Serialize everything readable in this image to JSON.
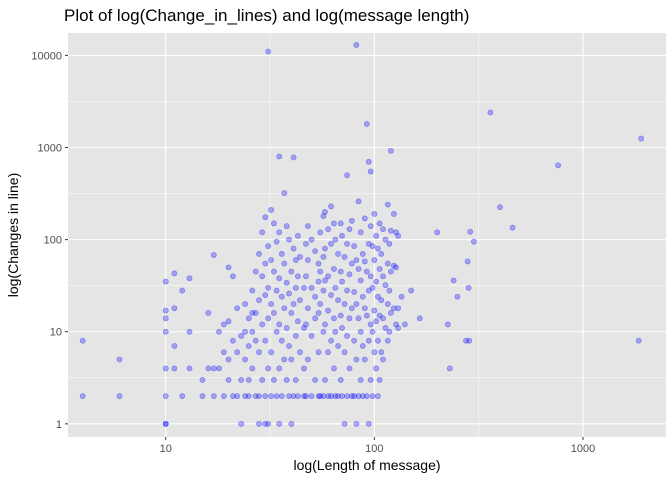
{
  "chart_data": {
    "type": "scatter",
    "title": "Plot of log(Change_in_lines) and log(message length)",
    "xlabel": "log(Length of message)",
    "ylabel": "log(Changes in line)",
    "x_scale": "log10",
    "y_scale": "log10",
    "xlim": [
      3.4,
      2500
    ],
    "ylim": [
      0.72,
      17500
    ],
    "x_ticks": [
      10,
      100,
      1000
    ],
    "x_tick_labels": [
      "10",
      "100",
      "1000"
    ],
    "y_ticks": [
      1,
      10,
      100,
      1000,
      10000
    ],
    "y_tick_labels": [
      "1",
      "10",
      "100",
      "1000",
      "10000"
    ],
    "grid": true,
    "point_color": "#0000ff",
    "point_alpha": 0.3,
    "panel_background": "#e5e5e5",
    "grid_color": "#ffffff",
    "points": [
      {
        "x": 4,
        "y": 8
      },
      {
        "x": 4,
        "y": 2
      },
      {
        "x": 6,
        "y": 5
      },
      {
        "x": 6,
        "y": 2
      },
      {
        "x": 10,
        "y": 35
      },
      {
        "x": 10,
        "y": 17
      },
      {
        "x": 10,
        "y": 14
      },
      {
        "x": 10,
        "y": 10
      },
      {
        "x": 10,
        "y": 4
      },
      {
        "x": 10,
        "y": 2
      },
      {
        "x": 10,
        "y": 1
      },
      {
        "x": 10,
        "y": 1
      },
      {
        "x": 11,
        "y": 43
      },
      {
        "x": 11,
        "y": 18
      },
      {
        "x": 11,
        "y": 7
      },
      {
        "x": 11,
        "y": 4
      },
      {
        "x": 12,
        "y": 28
      },
      {
        "x": 12,
        "y": 2
      },
      {
        "x": 13,
        "y": 38
      },
      {
        "x": 13,
        "y": 10
      },
      {
        "x": 13,
        "y": 4
      },
      {
        "x": 15,
        "y": 3
      },
      {
        "x": 15,
        "y": 2
      },
      {
        "x": 16,
        "y": 16
      },
      {
        "x": 16,
        "y": 4
      },
      {
        "x": 17,
        "y": 68
      },
      {
        "x": 17,
        "y": 4
      },
      {
        "x": 17,
        "y": 2
      },
      {
        "x": 18,
        "y": 10
      },
      {
        "x": 18,
        "y": 4
      },
      {
        "x": 19,
        "y": 12
      },
      {
        "x": 19,
        "y": 6
      },
      {
        "x": 19,
        "y": 2
      },
      {
        "x": 20,
        "y": 50
      },
      {
        "x": 20,
        "y": 13
      },
      {
        "x": 20,
        "y": 5
      },
      {
        "x": 20,
        "y": 3
      },
      {
        "x": 21,
        "y": 40
      },
      {
        "x": 21,
        "y": 8
      },
      {
        "x": 21,
        "y": 2
      },
      {
        "x": 22,
        "y": 18
      },
      {
        "x": 22,
        "y": 6
      },
      {
        "x": 22,
        "y": 2
      },
      {
        "x": 23,
        "y": 9
      },
      {
        "x": 23,
        "y": 3
      },
      {
        "x": 23,
        "y": 1
      },
      {
        "x": 24,
        "y": 20
      },
      {
        "x": 24,
        "y": 10
      },
      {
        "x": 24,
        "y": 5
      },
      {
        "x": 24,
        "y": 2
      },
      {
        "x": 25,
        "y": 14
      },
      {
        "x": 25,
        "y": 7
      },
      {
        "x": 25,
        "y": 3
      },
      {
        "x": 25,
        "y": 2
      },
      {
        "x": 26,
        "y": 28
      },
      {
        "x": 26,
        "y": 16
      },
      {
        "x": 26,
        "y": 10
      },
      {
        "x": 26,
        "y": 4
      },
      {
        "x": 27,
        "y": 45
      },
      {
        "x": 27,
        "y": 16
      },
      {
        "x": 27,
        "y": 8
      },
      {
        "x": 27,
        "y": 2
      },
      {
        "x": 28,
        "y": 70
      },
      {
        "x": 28,
        "y": 22
      },
      {
        "x": 28,
        "y": 6
      },
      {
        "x": 28,
        "y": 2
      },
      {
        "x": 28,
        "y": 1
      },
      {
        "x": 29,
        "y": 120
      },
      {
        "x": 29,
        "y": 40
      },
      {
        "x": 29,
        "y": 12
      },
      {
        "x": 29,
        "y": 3
      },
      {
        "x": 30,
        "y": 175
      },
      {
        "x": 30,
        "y": 55
      },
      {
        "x": 30,
        "y": 25
      },
      {
        "x": 30,
        "y": 8
      },
      {
        "x": 30,
        "y": 2
      },
      {
        "x": 30,
        "y": 1
      },
      {
        "x": 31,
        "y": 11000
      },
      {
        "x": 31,
        "y": 85
      },
      {
        "x": 31,
        "y": 30
      },
      {
        "x": 31,
        "y": 14
      },
      {
        "x": 31,
        "y": 4
      },
      {
        "x": 31,
        "y": 1
      },
      {
        "x": 32,
        "y": 210
      },
      {
        "x": 32,
        "y": 60
      },
      {
        "x": 32,
        "y": 20
      },
      {
        "x": 32,
        "y": 6
      },
      {
        "x": 32,
        "y": 2
      },
      {
        "x": 33,
        "y": 150
      },
      {
        "x": 33,
        "y": 45
      },
      {
        "x": 33,
        "y": 16
      },
      {
        "x": 33,
        "y": 3
      },
      {
        "x": 34,
        "y": 95
      },
      {
        "x": 34,
        "y": 28
      },
      {
        "x": 34,
        "y": 10
      },
      {
        "x": 34,
        "y": 2
      },
      {
        "x": 35,
        "y": 800
      },
      {
        "x": 35,
        "y": 120
      },
      {
        "x": 35,
        "y": 38
      },
      {
        "x": 35,
        "y": 12
      },
      {
        "x": 35,
        "y": 4
      },
      {
        "x": 35,
        "y": 1
      },
      {
        "x": 36,
        "y": 70
      },
      {
        "x": 36,
        "y": 24
      },
      {
        "x": 36,
        "y": 8
      },
      {
        "x": 36,
        "y": 2
      },
      {
        "x": 37,
        "y": 320
      },
      {
        "x": 37,
        "y": 55
      },
      {
        "x": 37,
        "y": 18
      },
      {
        "x": 37,
        "y": 5
      },
      {
        "x": 38,
        "y": 140
      },
      {
        "x": 38,
        "y": 34
      },
      {
        "x": 38,
        "y": 11
      },
      {
        "x": 38,
        "y": 3
      },
      {
        "x": 39,
        "y": 100
      },
      {
        "x": 39,
        "y": 26
      },
      {
        "x": 39,
        "y": 7
      },
      {
        "x": 39,
        "y": 2
      },
      {
        "x": 40,
        "y": 45
      },
      {
        "x": 40,
        "y": 16
      },
      {
        "x": 40,
        "y": 5
      },
      {
        "x": 40,
        "y": 1
      },
      {
        "x": 41,
        "y": 780
      },
      {
        "x": 41,
        "y": 80
      },
      {
        "x": 41,
        "y": 20
      },
      {
        "x": 41,
        "y": 2
      },
      {
        "x": 42,
        "y": 60
      },
      {
        "x": 42,
        "y": 30
      },
      {
        "x": 42,
        "y": 9
      },
      {
        "x": 42,
        "y": 3
      },
      {
        "x": 43,
        "y": 110
      },
      {
        "x": 43,
        "y": 40
      },
      {
        "x": 43,
        "y": 13
      },
      {
        "x": 43,
        "y": 2
      },
      {
        "x": 44,
        "y": 65
      },
      {
        "x": 44,
        "y": 22
      },
      {
        "x": 44,
        "y": 6
      },
      {
        "x": 46,
        "y": 30
      },
      {
        "x": 46,
        "y": 11
      },
      {
        "x": 46,
        "y": 4
      },
      {
        "x": 46,
        "y": 2
      },
      {
        "x": 47,
        "y": 90
      },
      {
        "x": 47,
        "y": 40
      },
      {
        "x": 47,
        "y": 12
      },
      {
        "x": 47,
        "y": 2
      },
      {
        "x": 48,
        "y": 140
      },
      {
        "x": 48,
        "y": 60
      },
      {
        "x": 48,
        "y": 18
      },
      {
        "x": 48,
        "y": 5
      },
      {
        "x": 50,
        "y": 100
      },
      {
        "x": 50,
        "y": 30
      },
      {
        "x": 50,
        "y": 9
      },
      {
        "x": 50,
        "y": 2
      },
      {
        "x": 52,
        "y": 75
      },
      {
        "x": 52,
        "y": 24
      },
      {
        "x": 52,
        "y": 14
      },
      {
        "x": 52,
        "y": 3
      },
      {
        "x": 54,
        "y": 55
      },
      {
        "x": 54,
        "y": 35
      },
      {
        "x": 54,
        "y": 16
      },
      {
        "x": 54,
        "y": 6
      },
      {
        "x": 54,
        "y": 2
      },
      {
        "x": 55,
        "y": 120
      },
      {
        "x": 55,
        "y": 45
      },
      {
        "x": 55,
        "y": 20
      },
      {
        "x": 55,
        "y": 2
      },
      {
        "x": 57,
        "y": 180
      },
      {
        "x": 57,
        "y": 65
      },
      {
        "x": 57,
        "y": 28
      },
      {
        "x": 57,
        "y": 10
      },
      {
        "x": 57,
        "y": 2
      },
      {
        "x": 58,
        "y": 200
      },
      {
        "x": 58,
        "y": 80
      },
      {
        "x": 58,
        "y": 36
      },
      {
        "x": 58,
        "y": 12
      },
      {
        "x": 58,
        "y": 3
      },
      {
        "x": 60,
        "y": 130
      },
      {
        "x": 60,
        "y": 40
      },
      {
        "x": 60,
        "y": 17
      },
      {
        "x": 60,
        "y": 6
      },
      {
        "x": 60,
        "y": 2
      },
      {
        "x": 62,
        "y": 230
      },
      {
        "x": 62,
        "y": 90
      },
      {
        "x": 62,
        "y": 25
      },
      {
        "x": 62,
        "y": 8
      },
      {
        "x": 62,
        "y": 2
      },
      {
        "x": 64,
        "y": 150
      },
      {
        "x": 64,
        "y": 48
      },
      {
        "x": 64,
        "y": 14
      },
      {
        "x": 64,
        "y": 4
      },
      {
        "x": 65,
        "y": 100
      },
      {
        "x": 65,
        "y": 30
      },
      {
        "x": 65,
        "y": 10
      },
      {
        "x": 65,
        "y": 2
      },
      {
        "x": 67,
        "y": 70
      },
      {
        "x": 67,
        "y": 22
      },
      {
        "x": 67,
        "y": 7
      },
      {
        "x": 67,
        "y": 2
      },
      {
        "x": 69,
        "y": 150
      },
      {
        "x": 69,
        "y": 45
      },
      {
        "x": 69,
        "y": 15
      },
      {
        "x": 69,
        "y": 3
      },
      {
        "x": 70,
        "y": 110
      },
      {
        "x": 70,
        "y": 35
      },
      {
        "x": 70,
        "y": 11
      },
      {
        "x": 70,
        "y": 2
      },
      {
        "x": 72,
        "y": 65
      },
      {
        "x": 72,
        "y": 20
      },
      {
        "x": 72,
        "y": 6
      },
      {
        "x": 72,
        "y": 1
      },
      {
        "x": 74,
        "y": 500
      },
      {
        "x": 74,
        "y": 90
      },
      {
        "x": 74,
        "y": 28
      },
      {
        "x": 74,
        "y": 9
      },
      {
        "x": 74,
        "y": 2
      },
      {
        "x": 76,
        "y": 130
      },
      {
        "x": 76,
        "y": 42
      },
      {
        "x": 76,
        "y": 14
      },
      {
        "x": 76,
        "y": 4
      },
      {
        "x": 78,
        "y": 160
      },
      {
        "x": 78,
        "y": 55
      },
      {
        "x": 78,
        "y": 18
      },
      {
        "x": 78,
        "y": 2
      },
      {
        "x": 80,
        "y": 85
      },
      {
        "x": 80,
        "y": 27
      },
      {
        "x": 80,
        "y": 8
      },
      {
        "x": 80,
        "y": 2
      },
      {
        "x": 82,
        "y": 13000
      },
      {
        "x": 82,
        "y": 60
      },
      {
        "x": 82,
        "y": 20
      },
      {
        "x": 82,
        "y": 5
      },
      {
        "x": 82,
        "y": 1
      },
      {
        "x": 84,
        "y": 260
      },
      {
        "x": 84,
        "y": 48
      },
      {
        "x": 84,
        "y": 14
      },
      {
        "x": 84,
        "y": 2
      },
      {
        "x": 86,
        "y": 120
      },
      {
        "x": 86,
        "y": 36
      },
      {
        "x": 86,
        "y": 10
      },
      {
        "x": 86,
        "y": 3
      },
      {
        "x": 88,
        "y": 70
      },
      {
        "x": 88,
        "y": 24
      },
      {
        "x": 88,
        "y": 7
      },
      {
        "x": 88,
        "y": 2
      },
      {
        "x": 90,
        "y": 170
      },
      {
        "x": 90,
        "y": 58
      },
      {
        "x": 90,
        "y": 18
      },
      {
        "x": 90,
        "y": 5
      },
      {
        "x": 92,
        "y": 1800
      },
      {
        "x": 92,
        "y": 45
      },
      {
        "x": 92,
        "y": 15
      },
      {
        "x": 92,
        "y": 2
      },
      {
        "x": 94,
        "y": 700
      },
      {
        "x": 94,
        "y": 90
      },
      {
        "x": 94,
        "y": 28
      },
      {
        "x": 94,
        "y": 8
      },
      {
        "x": 94,
        "y": 1
      },
      {
        "x": 96,
        "y": 550
      },
      {
        "x": 96,
        "y": 140
      },
      {
        "x": 96,
        "y": 40
      },
      {
        "x": 96,
        "y": 12
      },
      {
        "x": 96,
        "y": 3
      },
      {
        "x": 98,
        "y": 85
      },
      {
        "x": 98,
        "y": 30
      },
      {
        "x": 98,
        "y": 10
      },
      {
        "x": 98,
        "y": 2
      },
      {
        "x": 100,
        "y": 190
      },
      {
        "x": 100,
        "y": 60
      },
      {
        "x": 100,
        "y": 17
      },
      {
        "x": 100,
        "y": 6
      },
      {
        "x": 102,
        "y": 110
      },
      {
        "x": 102,
        "y": 35
      },
      {
        "x": 102,
        "y": 13
      },
      {
        "x": 102,
        "y": 4
      },
      {
        "x": 104,
        "y": 80
      },
      {
        "x": 104,
        "y": 24
      },
      {
        "x": 104,
        "y": 8
      },
      {
        "x": 104,
        "y": 2
      },
      {
        "x": 106,
        "y": 150
      },
      {
        "x": 106,
        "y": 48
      },
      {
        "x": 106,
        "y": 15
      },
      {
        "x": 106,
        "y": 3
      },
      {
        "x": 108,
        "y": 70
      },
      {
        "x": 108,
        "y": 22
      },
      {
        "x": 108,
        "y": 6
      },
      {
        "x": 110,
        "y": 130
      },
      {
        "x": 110,
        "y": 40
      },
      {
        "x": 110,
        "y": 14
      },
      {
        "x": 110,
        "y": 5
      },
      {
        "x": 113,
        "y": 100
      },
      {
        "x": 113,
        "y": 32
      },
      {
        "x": 113,
        "y": 11
      },
      {
        "x": 116,
        "y": 240
      },
      {
        "x": 116,
        "y": 55
      },
      {
        "x": 116,
        "y": 20
      },
      {
        "x": 116,
        "y": 8
      },
      {
        "x": 118,
        "y": 90
      },
      {
        "x": 118,
        "y": 28
      },
      {
        "x": 118,
        "y": 10
      },
      {
        "x": 120,
        "y": 920
      },
      {
        "x": 120,
        "y": 125
      },
      {
        "x": 120,
        "y": 45
      },
      {
        "x": 120,
        "y": 16
      },
      {
        "x": 124,
        "y": 190
      },
      {
        "x": 124,
        "y": 52
      },
      {
        "x": 124,
        "y": 18
      },
      {
        "x": 127,
        "y": 120
      },
      {
        "x": 127,
        "y": 50
      },
      {
        "x": 127,
        "y": 12
      },
      {
        "x": 130,
        "y": 110
      },
      {
        "x": 130,
        "y": 18
      },
      {
        "x": 130,
        "y": 11
      },
      {
        "x": 135,
        "y": 24
      },
      {
        "x": 140,
        "y": 12
      },
      {
        "x": 150,
        "y": 28
      },
      {
        "x": 165,
        "y": 14
      },
      {
        "x": 200,
        "y": 120
      },
      {
        "x": 225,
        "y": 12
      },
      {
        "x": 230,
        "y": 4
      },
      {
        "x": 240,
        "y": 36
      },
      {
        "x": 250,
        "y": 24
      },
      {
        "x": 275,
        "y": 8
      },
      {
        "x": 280,
        "y": 58
      },
      {
        "x": 283,
        "y": 30
      },
      {
        "x": 285,
        "y": 8
      },
      {
        "x": 288,
        "y": 122
      },
      {
        "x": 300,
        "y": 95
      },
      {
        "x": 360,
        "y": 2400
      },
      {
        "x": 400,
        "y": 225
      },
      {
        "x": 460,
        "y": 135
      },
      {
        "x": 760,
        "y": 640
      },
      {
        "x": 1900,
        "y": 1250
      },
      {
        "x": 1850,
        "y": 8
      }
    ]
  }
}
